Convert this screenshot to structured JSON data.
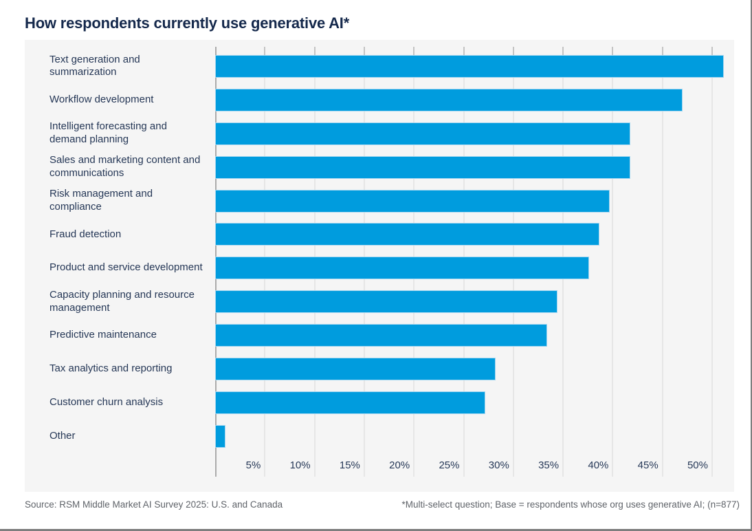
{
  "page": {
    "title": "How respondents currently use generative AI*",
    "footer_left": "Source: RSM Middle Market AI Survey 2025: U.S. and Canada",
    "footer_right": "*Multi-select question; Base = respondents whose org uses generative AI; (n=877)"
  },
  "colors": {
    "bar": "#009CDE",
    "bar_border": "#A5D6F0",
    "title_text": "#14284B",
    "label_text": "#253756",
    "panel_bg": "#F5F5F5",
    "gridline": "#E6E6E6",
    "tick": "#C4C4C4",
    "axis_line": "#ABABAB",
    "footer_text": "#5F6369",
    "frame_border": "#7E7E7E"
  },
  "chart_data": {
    "type": "bar",
    "orientation": "horizontal",
    "title": "How respondents currently use generative AI*",
    "categories": [
      "Text generation and summarization",
      "Workflow development",
      "Intelligent forecasting and demand planning",
      "Sales and marketing content and communications",
      "Risk management and compliance",
      "Fraud detection",
      "Product and service development",
      "Capacity planning and resource management",
      "Predictive maintenance",
      "Tax analytics and reporting",
      "Customer churn analysis",
      "Other"
    ],
    "values": [
      49,
      45,
      40,
      40,
      38,
      37,
      36,
      33,
      32,
      27,
      26,
      1
    ],
    "unit": "%",
    "xlabel": "",
    "ylabel": "",
    "xlim": [
      0,
      50
    ],
    "x_ticks": [
      "5%",
      "10%",
      "15%",
      "20%",
      "25%",
      "30%",
      "35%",
      "40%",
      "45%",
      "50%"
    ],
    "x_tick_values": [
      5,
      10,
      15,
      20,
      25,
      30,
      35,
      40,
      45,
      50
    ],
    "grid": true,
    "legend": false,
    "bar_color": "#009CDE"
  }
}
